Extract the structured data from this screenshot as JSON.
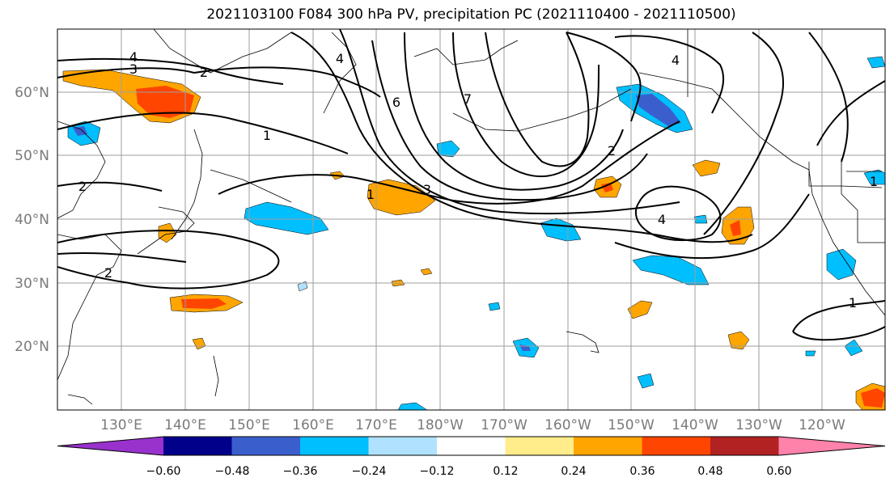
{
  "title": "2021103100 F084 300 hPa PV, precipitation PC (2021110400 - 2021110500)",
  "map": {
    "lat_labels": [
      "60°N",
      "50°N",
      "40°N",
      "30°N",
      "20°N"
    ],
    "lon_labels": [
      "130°E",
      "140°E",
      "150°E",
      "160°E",
      "170°E",
      "180°W",
      "170°W",
      "160°W",
      "150°W",
      "140°W",
      "130°W",
      "120°W"
    ],
    "grid": true,
    "contour_label_values": [
      "4",
      "3",
      "2",
      "1",
      "2",
      "2",
      "1",
      "3",
      "6",
      "7",
      "4",
      "2",
      "4",
      "4",
      "1",
      "1"
    ]
  },
  "colorbar": {
    "tick_labels": [
      "−0.60",
      "−0.48",
      "−0.36",
      "−0.24",
      "−0.12",
      "0.12",
      "0.24",
      "0.36",
      "0.48",
      "0.60"
    ],
    "colors": [
      "#9932CC",
      "#00008B",
      "#3A5FCD",
      "#00BFFF",
      "#B0E2FF",
      "#FFFFFF",
      "#FFEC8B",
      "#FFA500",
      "#FF4500",
      "#B22222",
      "#FF82AB"
    ]
  }
}
